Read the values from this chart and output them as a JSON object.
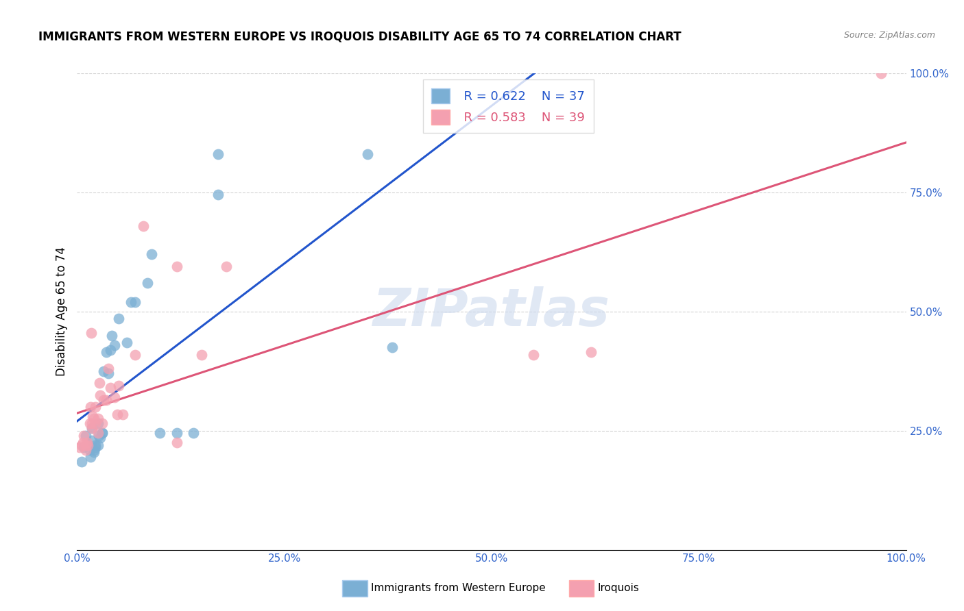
{
  "title": "IMMIGRANTS FROM WESTERN EUROPE VS IROQUOIS DISABILITY AGE 65 TO 74 CORRELATION CHART",
  "source": "Source: ZipAtlas.com",
  "ylabel": "Disability Age 65 to 74",
  "xlim": [
    0,
    1.0
  ],
  "ylim": [
    0,
    1.0
  ],
  "xtick_labels": [
    "0.0%",
    "25.0%",
    "50.0%",
    "75.0%",
    "100.0%"
  ],
  "xtick_positions": [
    0,
    0.25,
    0.5,
    0.75,
    1.0
  ],
  "ytick_labels": [
    "25.0%",
    "50.0%",
    "75.0%",
    "100.0%"
  ],
  "ytick_positions": [
    0.25,
    0.5,
    0.75,
    1.0
  ],
  "blue_R": "R = 0.622",
  "blue_N": "N = 37",
  "pink_R": "R = 0.583",
  "pink_N": "N = 39",
  "blue_scatter_color": "#7bafd4",
  "pink_scatter_color": "#f4a0b0",
  "blue_line_color": "#2255cc",
  "pink_line_color": "#dd5577",
  "legend_label_blue": "Immigrants from Western Europe",
  "legend_label_pink": "Iroquois",
  "watermark": "ZIPatlas",
  "blue_scatter_x": [
    0.005,
    0.008,
    0.01,
    0.013,
    0.015,
    0.016,
    0.018,
    0.018,
    0.02,
    0.02,
    0.022,
    0.022,
    0.025,
    0.025,
    0.026,
    0.028,
    0.03,
    0.03,
    0.032,
    0.035,
    0.038,
    0.04,
    0.042,
    0.045,
    0.05,
    0.06,
    0.065,
    0.07,
    0.085,
    0.09,
    0.1,
    0.12,
    0.14,
    0.17,
    0.17,
    0.35,
    0.38
  ],
  "blue_scatter_y": [
    0.185,
    0.215,
    0.24,
    0.22,
    0.21,
    0.195,
    0.255,
    0.23,
    0.205,
    0.21,
    0.22,
    0.215,
    0.265,
    0.22,
    0.24,
    0.235,
    0.245,
    0.245,
    0.375,
    0.415,
    0.37,
    0.42,
    0.45,
    0.43,
    0.485,
    0.435,
    0.52,
    0.52,
    0.56,
    0.62,
    0.245,
    0.245,
    0.245,
    0.745,
    0.83,
    0.83,
    0.425
  ],
  "pink_scatter_x": [
    0.003,
    0.005,
    0.007,
    0.008,
    0.01,
    0.01,
    0.012,
    0.013,
    0.015,
    0.016,
    0.017,
    0.018,
    0.018,
    0.019,
    0.02,
    0.022,
    0.022,
    0.025,
    0.025,
    0.027,
    0.028,
    0.03,
    0.032,
    0.035,
    0.038,
    0.04,
    0.045,
    0.048,
    0.05,
    0.055,
    0.07,
    0.08,
    0.12,
    0.15,
    0.55,
    0.62,
    0.12,
    0.18,
    0.97
  ],
  "pink_scatter_y": [
    0.215,
    0.22,
    0.225,
    0.24,
    0.21,
    0.22,
    0.225,
    0.22,
    0.265,
    0.3,
    0.455,
    0.255,
    0.265,
    0.28,
    0.275,
    0.265,
    0.3,
    0.245,
    0.275,
    0.35,
    0.325,
    0.265,
    0.315,
    0.315,
    0.38,
    0.34,
    0.32,
    0.285,
    0.345,
    0.285,
    0.41,
    0.68,
    0.225,
    0.41,
    0.41,
    0.415,
    0.595,
    0.595,
    1.0
  ]
}
